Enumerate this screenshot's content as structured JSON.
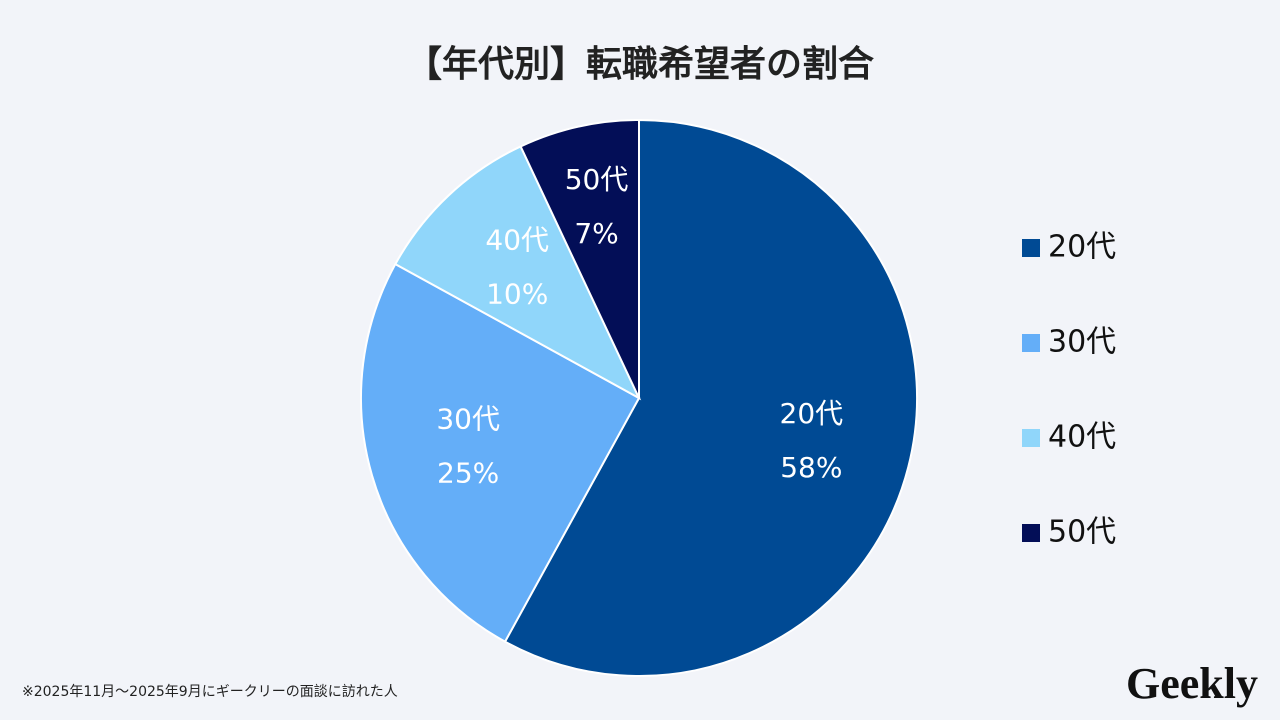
{
  "chart_data": {
    "type": "pie",
    "title": "【年代別】転職希望者の割合",
    "categories": [
      "20代",
      "30代",
      "40代",
      "50代"
    ],
    "values": [
      58,
      25,
      10,
      7
    ],
    "value_labels": [
      "58%",
      "25%",
      "10%",
      "7%"
    ],
    "colors": [
      "#004a94",
      "#64aef8",
      "#90d6fa",
      "#030e57"
    ],
    "legend": "right"
  },
  "footnote": "※2025年11月～2025年9月にギークリーの面談に訪れた人",
  "logo": "Geekly"
}
